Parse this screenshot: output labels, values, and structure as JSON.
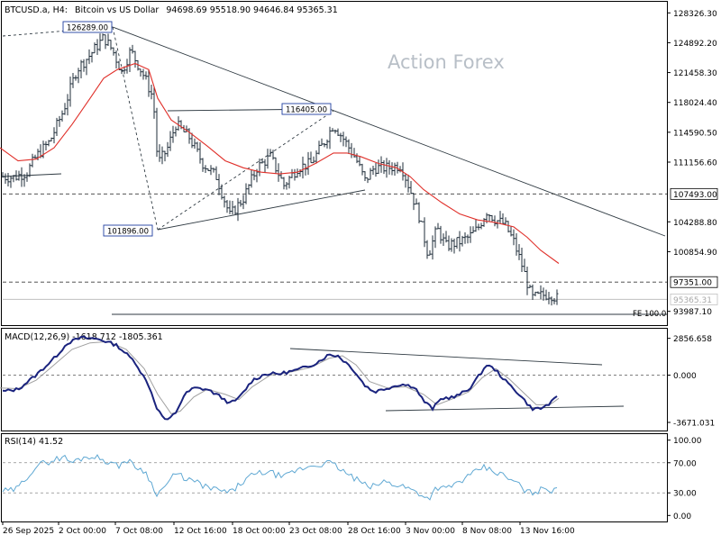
{
  "header": {
    "symbol": "BTCUSD.a, H4:",
    "description": "Bitcoin vs US Dollar",
    "ohlc": "94698.69 95518.90 94646.84 95365.31"
  },
  "watermark": "Action Forex",
  "colors": {
    "price_bars": "#1f2d3a",
    "ma_line": "#e0302a",
    "macd_line": "#1a237e",
    "signal_line": "#a0a0a0",
    "rsi_line": "#5fa8d3",
    "trend_lines": "#2f3a42",
    "dashed_levels": "#3a3a3a",
    "label_border": "#1f3fa0"
  },
  "chart_data": [
    {
      "type": "candlestick",
      "panel": "price",
      "title": "BTCUSD.a, H4: Bitcoin vs US Dollar",
      "ylim": [
        92400,
        129600
      ],
      "yticks": [
        128326.3,
        124892.2,
        121458.3,
        118024.4,
        114590.5,
        111156.6,
        107493.0,
        104288.8,
        100854.9,
        97351.0,
        95365.31,
        93987.1
      ],
      "ytick_labels": [
        "128326.30",
        "124892.20",
        "121458.30",
        "118024.40",
        "114590.50",
        "111156.60",
        "107493.00",
        "104288.80",
        "100854.90",
        "97351.00",
        "95365.31",
        "93987.10"
      ],
      "xtick_labels": [
        "26 Sep 2025",
        "2 Oct 00:00",
        "7 Oct 08:00",
        "12 Oct 16:00",
        "18 Oct 00:00",
        "23 Oct 08:00",
        "28 Oct 16:00",
        "3 Nov 00:00",
        "8 Nov 08:00",
        "13 Nov 16:00"
      ],
      "close_path": [
        [
          0,
          109500
        ],
        [
          15,
          109400
        ],
        [
          30,
          110000
        ],
        [
          40,
          111800
        ],
        [
          55,
          113500
        ],
        [
          70,
          117000
        ],
        [
          85,
          121800
        ],
        [
          100,
          123500
        ],
        [
          115,
          125500
        ],
        [
          125,
          124000
        ],
        [
          135,
          121500
        ],
        [
          145,
          124000
        ],
        [
          160,
          121000
        ],
        [
          170,
          118500
        ],
        [
          175,
          111000
        ],
        [
          185,
          112500
        ],
        [
          195,
          115500
        ],
        [
          210,
          114000
        ],
        [
          225,
          111000
        ],
        [
          240,
          109500
        ],
        [
          255,
          105000
        ],
        [
          270,
          107000
        ],
        [
          285,
          110500
        ],
        [
          300,
          111800
        ],
        [
          315,
          108500
        ],
        [
          330,
          110500
        ],
        [
          345,
          111000
        ],
        [
          360,
          113500
        ],
        [
          370,
          115500
        ],
        [
          380,
          114000
        ],
        [
          395,
          111500
        ],
        [
          405,
          109000
        ],
        [
          415,
          110500
        ],
        [
          430,
          110500
        ],
        [
          445,
          110800
        ],
        [
          455,
          108000
        ],
        [
          465,
          105000
        ],
        [
          475,
          100500
        ],
        [
          485,
          103500
        ],
        [
          495,
          101500
        ],
        [
          510,
          102000
        ],
        [
          520,
          102500
        ],
        [
          530,
          103500
        ],
        [
          540,
          105500
        ],
        [
          550,
          104500
        ],
        [
          560,
          104000
        ],
        [
          570,
          102000
        ],
        [
          580,
          99000
        ],
        [
          590,
          95500
        ],
        [
          600,
          95800
        ],
        [
          610,
          96000
        ],
        [
          620,
          95365
        ]
      ],
      "ma_line": [
        [
          0,
          112800
        ],
        [
          20,
          111300
        ],
        [
          40,
          111500
        ],
        [
          60,
          112800
        ],
        [
          80,
          115500
        ],
        [
          100,
          118500
        ],
        [
          115,
          120800
        ],
        [
          130,
          121800
        ],
        [
          150,
          122500
        ],
        [
          165,
          121800
        ],
        [
          175,
          118500
        ],
        [
          190,
          116000
        ],
        [
          210,
          114600
        ],
        [
          230,
          113000
        ],
        [
          250,
          111300
        ],
        [
          270,
          110500
        ],
        [
          290,
          110000
        ],
        [
          310,
          109800
        ],
        [
          330,
          110000
        ],
        [
          350,
          111000
        ],
        [
          370,
          112200
        ],
        [
          385,
          112200
        ],
        [
          400,
          111800
        ],
        [
          420,
          111000
        ],
        [
          440,
          110500
        ],
        [
          455,
          109500
        ],
        [
          470,
          108000
        ],
        [
          490,
          106500
        ],
        [
          510,
          105200
        ],
        [
          530,
          104500
        ],
        [
          550,
          104200
        ],
        [
          570,
          103700
        ],
        [
          585,
          102500
        ],
        [
          600,
          101000
        ],
        [
          620,
          99500
        ]
      ],
      "horizontal_levels": [
        {
          "value": 107493.0,
          "label": "107493.00",
          "style": "dashed"
        },
        {
          "value": 97351.0,
          "label": "97351.00",
          "style": "dashed"
        },
        {
          "value": 95365.31,
          "label": "95365.31",
          "style": "current"
        },
        {
          "value": 93020,
          "label": "FE 100.0",
          "style": "solid"
        }
      ],
      "annotations": [
        {
          "label": "126289.00",
          "price": 126289.0
        },
        {
          "label": "101896.00",
          "price": 101896.0
        },
        {
          "label": "116405.00",
          "price": 116405.0
        }
      ]
    },
    {
      "type": "line",
      "panel": "macd",
      "title": "MACD(12,26,9) -1618.712 -1805.361",
      "ylim": [
        -4300,
        3600
      ],
      "yticks": [
        2856.658,
        0,
        -3671.031
      ],
      "ytick_labels": [
        "2856.658",
        "0.000",
        "-3671.031"
      ],
      "series": [
        {
          "name": "MACD",
          "values": [
            [
              0,
              -1300
            ],
            [
              20,
              -1100
            ],
            [
              40,
              0
            ],
            [
              60,
              1300
            ],
            [
              75,
              2500
            ],
            [
              90,
              2900
            ],
            [
              110,
              2800
            ],
            [
              130,
              2300
            ],
            [
              150,
              1000
            ],
            [
              165,
              -800
            ],
            [
              175,
              -2700
            ],
            [
              185,
              -3600
            ],
            [
              195,
              -2900
            ],
            [
              205,
              -1500
            ],
            [
              215,
              -1000
            ],
            [
              230,
              -1100
            ],
            [
              245,
              -1700
            ],
            [
              255,
              -2200
            ],
            [
              265,
              -1800
            ],
            [
              280,
              -400
            ],
            [
              295,
              100
            ],
            [
              310,
              100
            ],
            [
              330,
              400
            ],
            [
              350,
              900
            ],
            [
              365,
              1600
            ],
            [
              375,
              1500
            ],
            [
              390,
              600
            ],
            [
              405,
              -800
            ],
            [
              415,
              -1300
            ],
            [
              430,
              -1000
            ],
            [
              445,
              -700
            ],
            [
              460,
              -900
            ],
            [
              470,
              -2000
            ],
            [
              480,
              -2600
            ],
            [
              490,
              -1800
            ],
            [
              505,
              -1700
            ],
            [
              520,
              -1100
            ],
            [
              530,
              -200
            ],
            [
              540,
              800
            ],
            [
              550,
              400
            ],
            [
              560,
              -400
            ],
            [
              575,
              -1400
            ],
            [
              590,
              -2600
            ],
            [
              600,
              -2600
            ],
            [
              610,
              -2200
            ],
            [
              620,
              -1618.712
            ]
          ]
        },
        {
          "name": "Signal",
          "values": [
            [
              0,
              -1000
            ],
            [
              20,
              -1050
            ],
            [
              40,
              -400
            ],
            [
              60,
              800
            ],
            [
              80,
              2000
            ],
            [
              100,
              2500
            ],
            [
              120,
              2600
            ],
            [
              140,
              2000
            ],
            [
              160,
              500
            ],
            [
              175,
              -1500
            ],
            [
              190,
              -3000
            ],
            [
              200,
              -2800
            ],
            [
              215,
              -1700
            ],
            [
              230,
              -1100
            ],
            [
              250,
              -1500
            ],
            [
              265,
              -1900
            ],
            [
              280,
              -900
            ],
            [
              300,
              0
            ],
            [
              320,
              200
            ],
            [
              345,
              600
            ],
            [
              365,
              1300
            ],
            [
              380,
              1500
            ],
            [
              395,
              800
            ],
            [
              410,
              -500
            ],
            [
              430,
              -1000
            ],
            [
              450,
              -900
            ],
            [
              470,
              -1500
            ],
            [
              485,
              -2300
            ],
            [
              500,
              -1900
            ],
            [
              520,
              -1300
            ],
            [
              535,
              -200
            ],
            [
              550,
              500
            ],
            [
              565,
              -300
            ],
            [
              580,
              -1300
            ],
            [
              595,
              -2300
            ],
            [
              610,
              -2300
            ],
            [
              620,
              -1805.361
            ]
          ]
        }
      ]
    },
    {
      "type": "line",
      "panel": "rsi",
      "title": "RSI(14) 41.52",
      "ylim": [
        -8,
        108
      ],
      "yticks": [
        100,
        70,
        30,
        0
      ],
      "ytick_labels": [
        "100.00",
        "70.00",
        "30.00",
        "0.00"
      ],
      "series": [
        {
          "name": "RSI",
          "values": [
            [
              0,
              33
            ],
            [
              10,
              32
            ],
            [
              20,
              36
            ],
            [
              30,
              52
            ],
            [
              40,
              65
            ],
            [
              50,
              70
            ],
            [
              60,
              74
            ],
            [
              70,
              78
            ],
            [
              80,
              70
            ],
            [
              90,
              76
            ],
            [
              100,
              79
            ],
            [
              110,
              76
            ],
            [
              120,
              72
            ],
            [
              130,
              65
            ],
            [
              140,
              74
            ],
            [
              150,
              65
            ],
            [
              160,
              60
            ],
            [
              170,
              38
            ],
            [
              175,
              28
            ],
            [
              185,
              42
            ],
            [
              195,
              55
            ],
            [
              205,
              50
            ],
            [
              215,
              45
            ],
            [
              225,
              40
            ],
            [
              235,
              35
            ],
            [
              245,
              33
            ],
            [
              255,
              30
            ],
            [
              265,
              40
            ],
            [
              275,
              50
            ],
            [
              285,
              55
            ],
            [
              295,
              58
            ],
            [
              305,
              55
            ],
            [
              315,
              50
            ],
            [
              325,
              58
            ],
            [
              335,
              62
            ],
            [
              345,
              66
            ],
            [
              355,
              68
            ],
            [
              365,
              70
            ],
            [
              375,
              64
            ],
            [
              385,
              55
            ],
            [
              395,
              48
            ],
            [
              405,
              40
            ],
            [
              415,
              38
            ],
            [
              425,
              45
            ],
            [
              435,
              42
            ],
            [
              445,
              40
            ],
            [
              455,
              35
            ],
            [
              465,
              30
            ],
            [
              475,
              22
            ],
            [
              485,
              38
            ],
            [
              495,
              35
            ],
            [
              505,
              42
            ],
            [
              515,
              48
            ],
            [
              525,
              55
            ],
            [
              535,
              64
            ],
            [
              545,
              60
            ],
            [
              555,
              55
            ],
            [
              565,
              48
            ],
            [
              575,
              42
            ],
            [
              585,
              30
            ],
            [
              595,
              32
            ],
            [
              605,
              36
            ],
            [
              612,
              34
            ],
            [
              620,
              41.52
            ]
          ]
        }
      ]
    }
  ]
}
